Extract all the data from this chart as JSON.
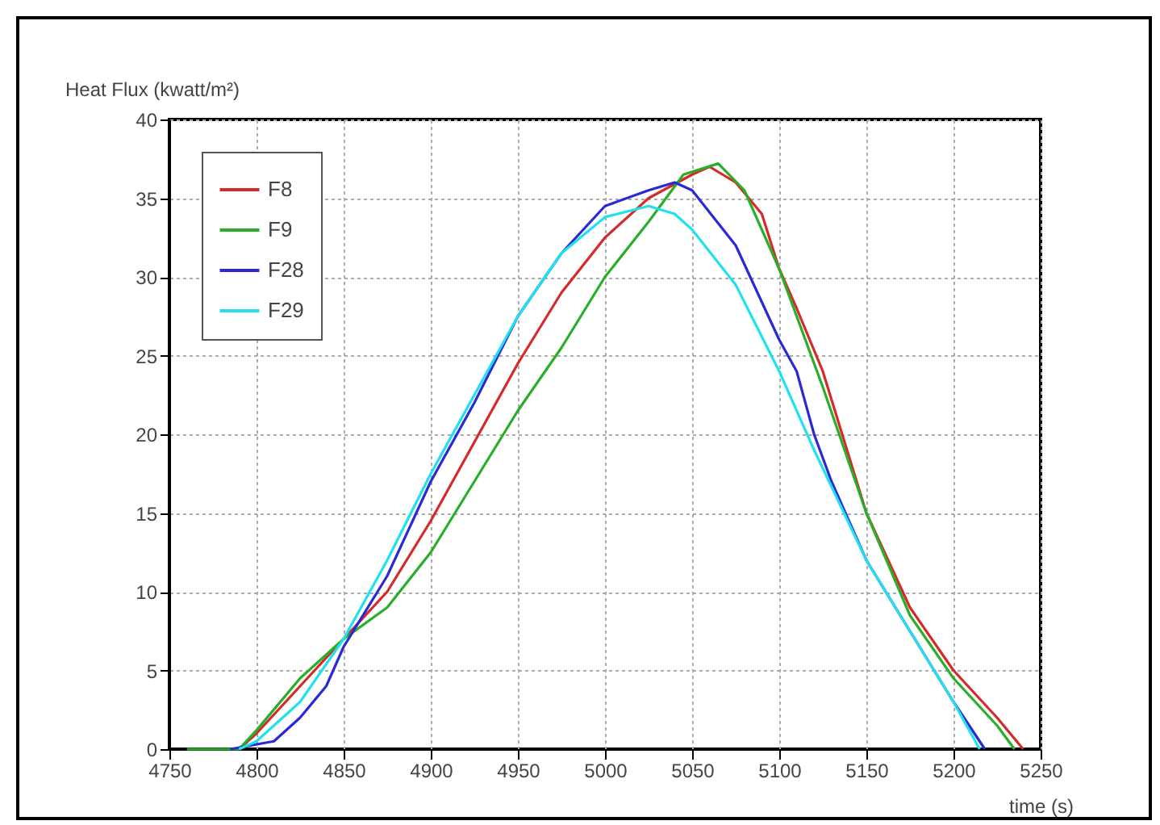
{
  "chart_data": {
    "type": "line",
    "xlabel": "time (s)",
    "ylabel": "Heat Flux (kwatt/m²)",
    "xlim": [
      4750,
      5250
    ],
    "xticks": [
      4750,
      4800,
      4850,
      4900,
      4950,
      5000,
      5050,
      5100,
      5150,
      5200,
      5250
    ],
    "ylim": [
      0,
      40
    ],
    "yticks": [
      0,
      5,
      10,
      15,
      20,
      25,
      30,
      35,
      40
    ],
    "grid": true,
    "legend": "top left",
    "line_style": "solid",
    "series": [
      {
        "name": "F8",
        "color": "#d42a2a",
        "x": [
          4790,
          4800,
          4825,
          4850,
          4875,
          4900,
          4925,
          4950,
          4975,
          5000,
          5025,
          5050,
          5060,
          5075,
          5090,
          5100,
          5110,
          5125,
          5150,
          5175,
          5200,
          5225,
          5240
        ],
        "values": [
          0,
          1,
          4,
          7,
          10,
          14.5,
          19.5,
          24.5,
          29,
          32.5,
          35,
          36.5,
          37,
          36,
          34,
          30.5,
          28,
          24,
          15,
          9,
          5,
          2,
          0
        ]
      },
      {
        "name": "F9",
        "color": "#2aae2a",
        "x": [
          4760,
          4790,
          4800,
          4825,
          4850,
          4875,
          4900,
          4925,
          4950,
          4975,
          5000,
          5025,
          5045,
          5065,
          5080,
          5090,
          5100,
          5125,
          5150,
          5175,
          5200,
          5225,
          5235
        ],
        "values": [
          0,
          0,
          1.2,
          4.5,
          7,
          9,
          12.5,
          17,
          21.5,
          25.5,
          30,
          33.5,
          36.5,
          37.2,
          35.5,
          33,
          30.5,
          23,
          15,
          8.5,
          4.5,
          1.5,
          0
        ]
      },
      {
        "name": "F28",
        "color": "#2a2ad4",
        "x": [
          4785,
          4810,
          4825,
          4840,
          4850,
          4875,
          4900,
          4925,
          4950,
          4975,
          5000,
          5025,
          5040,
          5050,
          5075,
          5100,
          5110,
          5120,
          5130,
          5150,
          5175,
          5200,
          5218
        ],
        "values": [
          0,
          0.5,
          2,
          4,
          6.5,
          11,
          17,
          22,
          27.5,
          31.5,
          34.5,
          35.5,
          36,
          35.5,
          32,
          26,
          24,
          20,
          17,
          12,
          7.5,
          3,
          0
        ]
      },
      {
        "name": "F29",
        "color": "#22e0ee",
        "x": [
          4790,
          4800,
          4825,
          4850,
          4875,
          4900,
          4925,
          4950,
          4975,
          5000,
          5025,
          5040,
          5050,
          5075,
          5100,
          5120,
          5150,
          5175,
          5200,
          5215
        ],
        "values": [
          0,
          0.5,
          3,
          7,
          12,
          17.5,
          22.5,
          27.5,
          31.5,
          33.8,
          34.5,
          34,
          33,
          29.5,
          24,
          19,
          12,
          7.5,
          3,
          0
        ]
      }
    ]
  }
}
